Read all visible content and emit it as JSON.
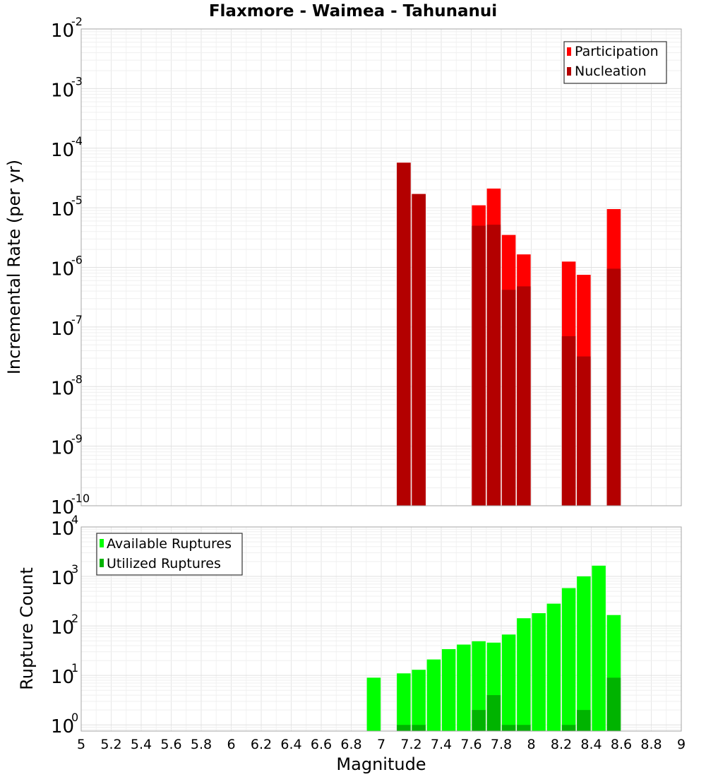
{
  "chart_data": [
    {
      "type": "bar",
      "title": "Flaxmore - Waimea - Tahunanui",
      "ylabel": "Incremental Rate (per yr)",
      "yscale": "log",
      "ylim": [
        1e-10,
        0.01
      ],
      "xlim": [
        5,
        9
      ],
      "grid": true,
      "legend_position": "top-right",
      "colors": {
        "participation": "#ff0000",
        "nucleation": "#b30000"
      },
      "series": [
        {
          "name": "Participation",
          "x": [
            7.15,
            7.25,
            7.65,
            7.75,
            7.85,
            7.95,
            8.25,
            8.35,
            8.55
          ],
          "values": [
            5.7e-05,
            1.7e-05,
            1.1e-05,
            2.1e-05,
            3.5e-06,
            1.65e-06,
            1.25e-06,
            7.5e-07,
            9.5e-06
          ]
        },
        {
          "name": "Nucleation",
          "x": [
            7.15,
            7.25,
            7.65,
            7.75,
            7.85,
            7.95,
            8.25,
            8.35,
            8.55
          ],
          "values": [
            5.7e-05,
            1.7e-05,
            5e-06,
            5.2e-06,
            4.2e-07,
            4.8e-07,
            7e-08,
            3.2e-08,
            9.5e-07
          ]
        }
      ]
    },
    {
      "type": "bar",
      "xlabel": "Magnitude",
      "ylabel": "Rupture Count",
      "yscale": "log",
      "ylim": [
        0.75,
        10000
      ],
      "xlim": [
        5,
        9
      ],
      "grid": true,
      "legend_position": "top-left",
      "x_ticks": [
        "5",
        "5.2",
        "5.4",
        "5.6",
        "5.8",
        "6",
        "6.2",
        "6.4",
        "6.6",
        "6.8",
        "7",
        "7.2",
        "7.4",
        "7.6",
        "7.8",
        "8",
        "8.2",
        "8.4",
        "8.6",
        "8.8",
        "9"
      ],
      "colors": {
        "available": "#00ff00",
        "utilized": "#00b300"
      },
      "series": [
        {
          "name": "Available Ruptures",
          "x": [
            6.95,
            7.15,
            7.25,
            7.35,
            7.45,
            7.55,
            7.65,
            7.75,
            7.85,
            7.95,
            8.05,
            8.15,
            8.25,
            8.35,
            8.45,
            8.55
          ],
          "values": [
            9,
            11,
            13,
            21,
            34,
            42,
            49,
            46,
            67,
            143,
            181,
            282,
            581,
            1002,
            1651,
            166
          ]
        },
        {
          "name": "Utilized Ruptures",
          "x": [
            7.15,
            7.25,
            7.65,
            7.75,
            7.85,
            7.95,
            8.25,
            8.35,
            8.55
          ],
          "values": [
            1,
            1,
            2,
            4,
            1,
            1,
            1,
            2,
            9
          ]
        }
      ]
    }
  ]
}
